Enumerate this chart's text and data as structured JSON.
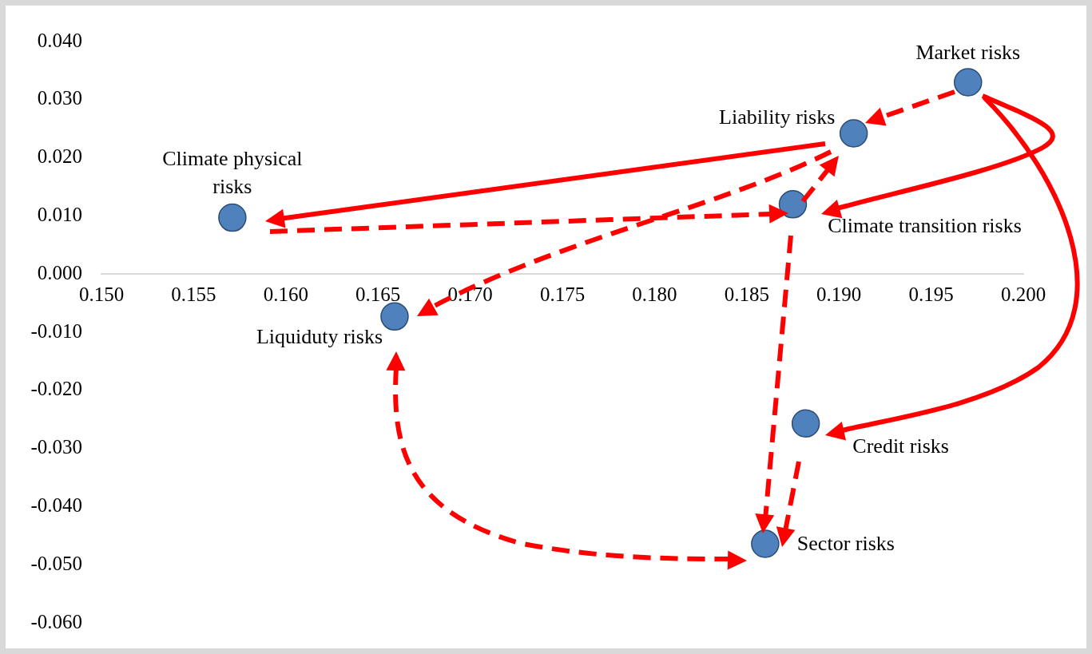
{
  "chart_data": {
    "type": "scatter",
    "marker": "circle",
    "legend": false,
    "xlim": [
      0.15,
      0.2
    ],
    "xticks": [
      {
        "value": 0.15,
        "label": "0.150"
      },
      {
        "value": 0.155,
        "label": "0.155"
      },
      {
        "value": 0.16,
        "label": "0.160"
      },
      {
        "value": 0.165,
        "label": "0.165"
      },
      {
        "value": 0.17,
        "label": "0.170"
      },
      {
        "value": 0.175,
        "label": "0.175"
      },
      {
        "value": 0.18,
        "label": "0.180"
      },
      {
        "value": 0.185,
        "label": "0.185"
      },
      {
        "value": 0.19,
        "label": "0.190"
      },
      {
        "value": 0.195,
        "label": "0.195"
      },
      {
        "value": 0.2,
        "label": "0.200"
      }
    ],
    "ylim": [
      -0.06,
      0.04
    ],
    "yticks": [
      {
        "value": -0.06,
        "label": "-0.060"
      },
      {
        "value": -0.05,
        "label": "-0.050"
      },
      {
        "value": -0.04,
        "label": "-0.040"
      },
      {
        "value": -0.03,
        "label": "-0.030"
      },
      {
        "value": -0.02,
        "label": "-0.020"
      },
      {
        "value": -0.01,
        "label": "-0.010"
      },
      {
        "value": 0,
        "label": "0.000"
      },
      {
        "value": 0.01,
        "label": "0.010"
      },
      {
        "value": 0.02,
        "label": "0.020"
      },
      {
        "value": 0.03,
        "label": "0.030"
      },
      {
        "value": 0.04,
        "label": "0.040"
      }
    ],
    "series": [
      {
        "name": "Market risks",
        "color": "#4f81bd",
        "x": [
          0.197
        ],
        "values": [
          0.033
        ]
      },
      {
        "name": "Liability risks",
        "color": "#4f81bd",
        "x": [
          0.1908
        ],
        "values": [
          0.0242
        ]
      },
      {
        "name": "Climate physical risks",
        "color": "#4f81bd",
        "x": [
          0.1571
        ],
        "values": [
          0.0097
        ]
      },
      {
        "name": "Climate transition risks",
        "color": "#4f81bd",
        "x": [
          0.1875
        ],
        "values": [
          0.012
        ]
      },
      {
        "name": "Liquiduty risks",
        "color": "#4f81bd",
        "x": [
          0.1659
        ],
        "values": [
          -0.0073
        ]
      },
      {
        "name": "Credit risks",
        "color": "#4f81bd",
        "x": [
          0.1882
        ],
        "values": [
          -0.0257
        ]
      },
      {
        "name": "Sector risks",
        "color": "#4f81bd",
        "x": [
          0.186
        ],
        "values": [
          -0.0464
        ]
      }
    ]
  }
}
